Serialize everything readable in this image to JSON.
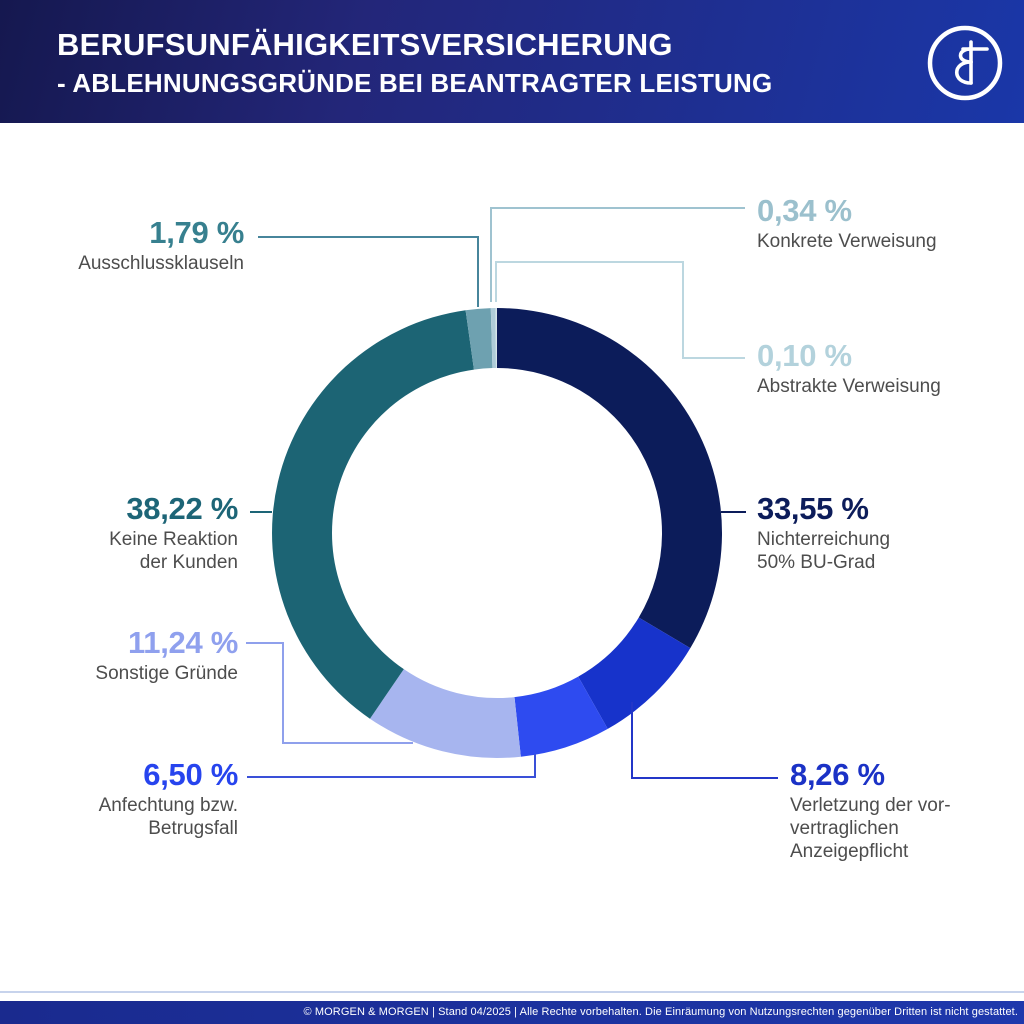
{
  "header": {
    "title_line1": "BERUFSUNFÄHIGKEITSVERSICHERUNG",
    "title_line2": "- ABLEHNUNGSGRÜNDE BEI BEANTRAGTER LEISTUNG",
    "logo_name": "Morgen & Morgen"
  },
  "footer": {
    "copyright": "© MORGEN & MORGEN | Stand 04/2025 | Alle Rechte vorbehalten. Die Einräumung von Nutzungsrechten gegenüber Dritten ist nicht gestattet."
  },
  "colors": {
    "background": "#FFFFFF",
    "label_text": "#4D4D4D",
    "header_dark": "#15184f",
    "header_blue": "#1a37a8",
    "footer_blue": "#1e38ac"
  },
  "chart_data": {
    "type": "pie",
    "subtype": "donut",
    "title": "Berufsunfähigkeitsversicherung - Ablehnungsgründe bei beantragter Leistung",
    "unit": "%",
    "start_angle_deg": -90,
    "direction": "clockwise",
    "segments": [
      {
        "id": "nichterreichung-50-bu-grad",
        "value": 33.55,
        "display_value": "33,55 %",
        "label_lines": [
          "Nichterreichung",
          "50% BU-Grad"
        ],
        "color": "#0C1C5A",
        "label_color": "#0C1C5A",
        "line_color": "#0C1C5A"
      },
      {
        "id": "verletzung-vorvertragliche-anzeigepflicht",
        "value": 8.26,
        "display_value": "8,26 %",
        "label_lines": [
          "Verletzung der vor-",
          "vertraglichen",
          "Anzeigepflicht"
        ],
        "color": "#1733CB",
        "label_color": "#1B32C6",
        "line_color": "#2336C8"
      },
      {
        "id": "anfechtung-betrugsfall",
        "value": 6.5,
        "display_value": "6,50 %",
        "label_lines": [
          "Anfechtung bzw.",
          "Betrugsfall"
        ],
        "color": "#2E4BF0",
        "label_color": "#2744EE",
        "line_color": "#3A50D8"
      },
      {
        "id": "sonstige-gruende",
        "value": 11.24,
        "display_value": "11,24 %",
        "label_lines": [
          "Sonstige Gründe"
        ],
        "color": "#A7B5EF",
        "label_color": "#8FA0EE",
        "line_color": "#8FA0EC"
      },
      {
        "id": "keine-reaktion-der-kunden",
        "value": 38.22,
        "display_value": "38,22 %",
        "label_lines": [
          "Keine Reaktion",
          "der Kunden"
        ],
        "color": "#1C6474",
        "label_color": "#1D6577",
        "line_color": "#1D6577"
      },
      {
        "id": "ausschlussklauseln",
        "value": 1.79,
        "display_value": "1,79 %",
        "label_lines": [
          "Ausschlussklauseln"
        ],
        "color": "#6EA1B0",
        "label_color": "#37808F",
        "line_color": "#47859B"
      },
      {
        "id": "konkrete-verweisung",
        "value": 0.34,
        "display_value": "0,34 %",
        "label_lines": [
          "Konkrete Verweisung"
        ],
        "color": "#AFCCD8",
        "label_color": "#9BC0CD",
        "line_color": "#9FC3D0"
      },
      {
        "id": "abstrakte-verweisung",
        "value": 0.1,
        "display_value": "0,10 %",
        "label_lines": [
          "Abstrakte Verweisung"
        ],
        "color": "#D6E5EB",
        "label_color": "#B3D2DC",
        "line_color": "#BCD7E0"
      }
    ]
  }
}
